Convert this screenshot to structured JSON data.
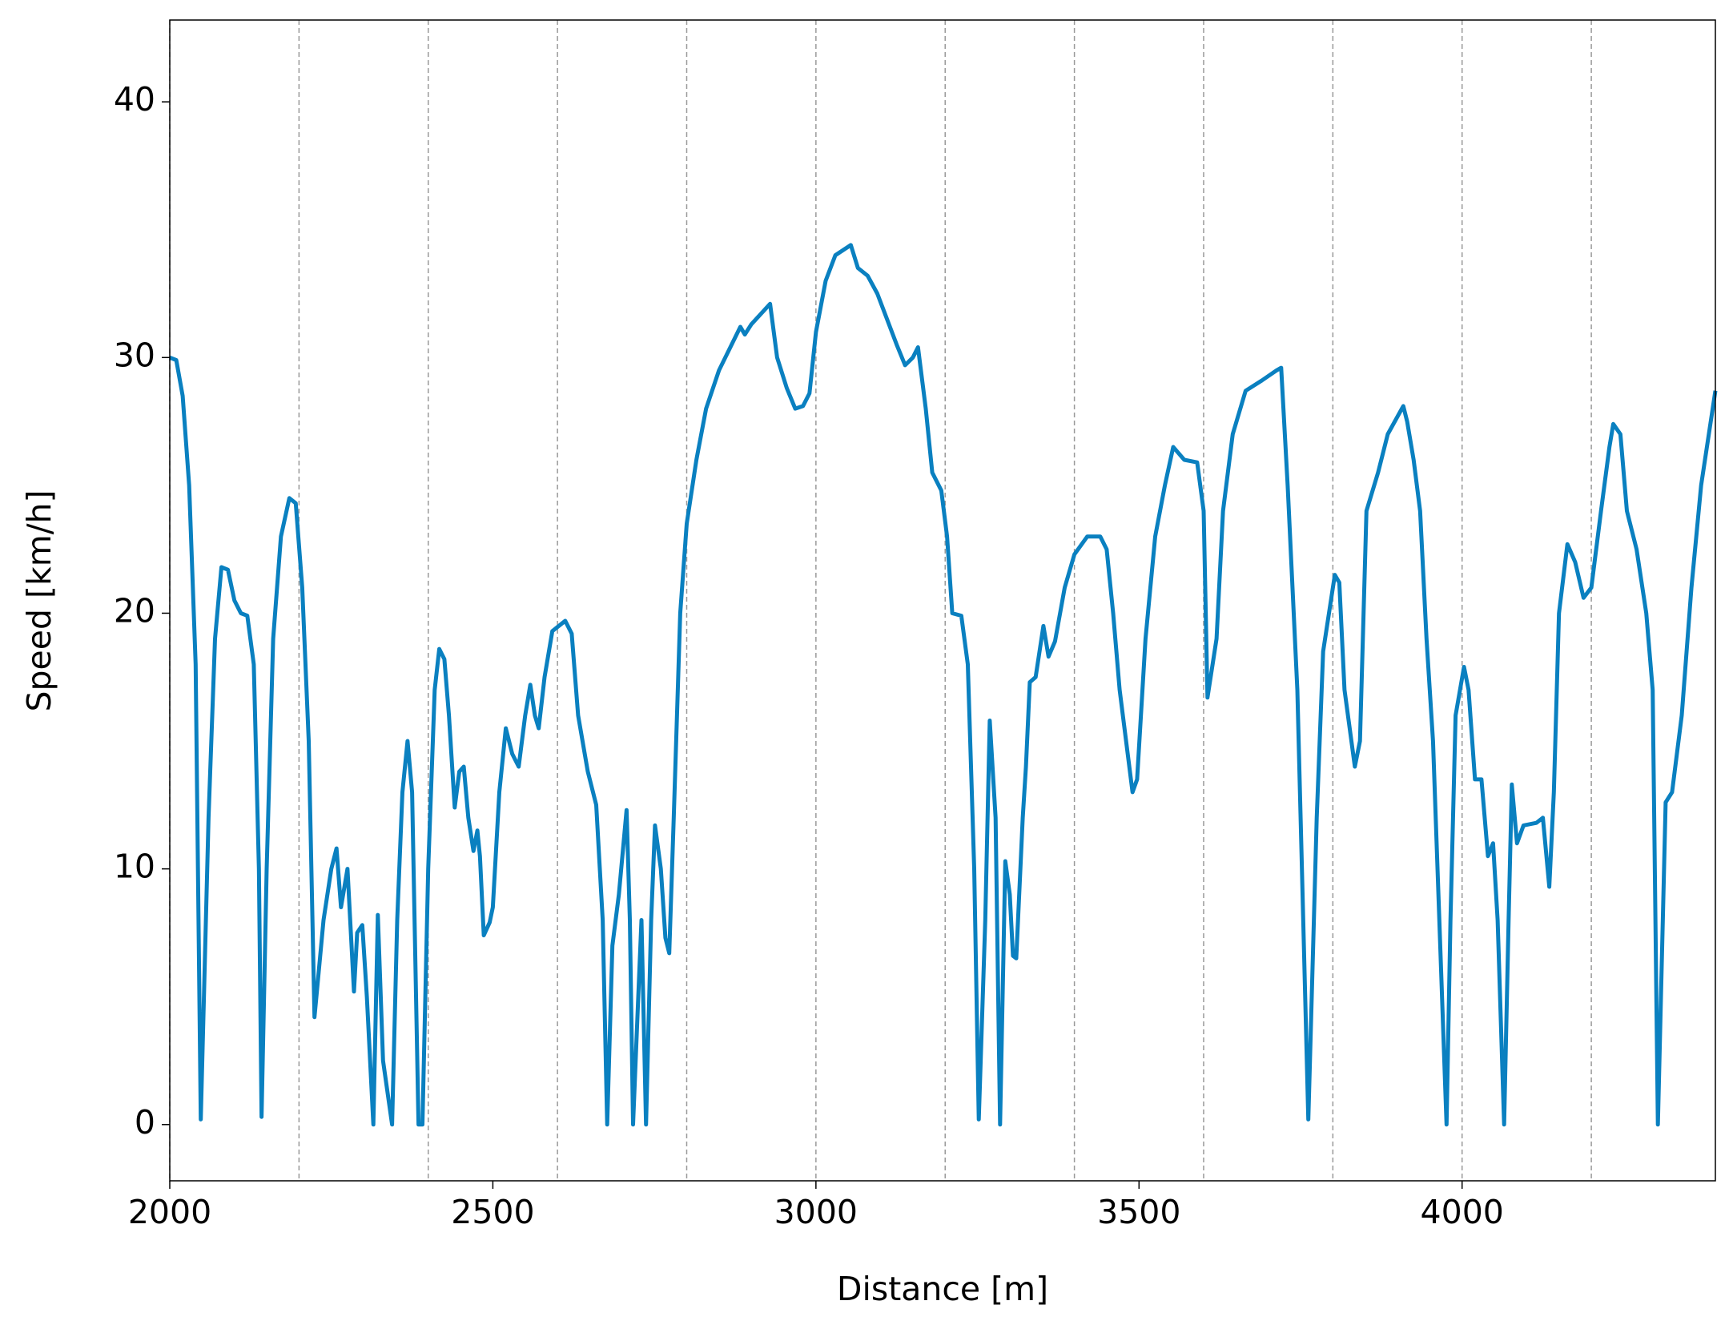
{
  "chart_data": {
    "type": "line",
    "xlabel": "Distance [m]",
    "ylabel": "Speed [km/h]",
    "xlim": [
      2000,
      4392
    ],
    "ylim": [
      -2.2,
      43.2
    ],
    "xticks": [
      2000,
      2500,
      3000,
      3500,
      4000
    ],
    "yticks": [
      0,
      10,
      20,
      30,
      40
    ],
    "vlines": [
      2000,
      2200,
      2400,
      2600,
      2800,
      3000,
      3200,
      3400,
      3600,
      3800,
      4000,
      4200
    ],
    "series": [
      {
        "color": "#0a80c0",
        "x": [
          2000,
          2010,
          2020,
          2030,
          2040,
          2048,
          2060,
          2070,
          2080,
          2090,
          2100,
          2110,
          2120,
          2130,
          2138,
          2142,
          2150,
          2160,
          2172,
          2185,
          2195,
          2205,
          2215,
          2224,
          2238,
          2250,
          2258,
          2265,
          2275,
          2285,
          2290,
          2298,
          2305,
          2315,
          2322,
          2330,
          2344,
          2352,
          2360,
          2368,
          2375,
          2385,
          2391,
          2400,
          2410,
          2417,
          2425,
          2432,
          2441,
          2448,
          2455,
          2462,
          2470,
          2476,
          2480,
          2486,
          2495,
          2500,
          2510,
          2520,
          2530,
          2540,
          2550,
          2558,
          2565,
          2571,
          2580,
          2592,
          2612,
          2622,
          2632,
          2647,
          2660,
          2670,
          2677,
          2685,
          2695,
          2707,
          2712,
          2717,
          2725,
          2730,
          2737,
          2745,
          2751,
          2760,
          2767,
          2773,
          2780,
          2790,
          2800,
          2815,
          2830,
          2850,
          2883,
          2890,
          2900,
          2929,
          2940,
          2955,
          2968,
          2980,
          2990,
          3000,
          3015,
          3030,
          3054,
          3065,
          3080,
          3095,
          3110,
          3125,
          3138,
          3150,
          3158,
          3170,
          3180,
          3194,
          3203,
          3211,
          3225,
          3235,
          3245,
          3252,
          3262,
          3269,
          3278,
          3285,
          3293,
          3300,
          3305,
          3310,
          3320,
          3325,
          3331,
          3340,
          3352,
          3360,
          3370,
          3385,
          3400,
          3420,
          3440,
          3450,
          3460,
          3470,
          3490,
          3497,
          3510,
          3525,
          3540,
          3553,
          3570,
          3590,
          3600,
          3606,
          3620,
          3630,
          3645,
          3665,
          3690,
          3713,
          3720,
          3730,
          3745,
          3762,
          3775,
          3785,
          3803,
          3810,
          3818,
          3834,
          3842,
          3852,
          3870,
          3885,
          3909,
          3915,
          3925,
          3935,
          3945,
          3955,
          3976,
          3982,
          3990,
          4003,
          4010,
          4020,
          4030,
          4040,
          4048,
          4055,
          4065,
          4072,
          4077,
          4085,
          4095,
          4115,
          4125,
          4135,
          4142,
          4150,
          4163,
          4175,
          4188,
          4200,
          4215,
          4228,
          4234,
          4245,
          4255,
          4270,
          4285,
          4295,
          4303,
          4315,
          4325,
          4340,
          4355,
          4370,
          4392
        ],
        "values": [
          30,
          29.9,
          28.5,
          25,
          18,
          0.2,
          12,
          19,
          21.8,
          21.7,
          20.5,
          20,
          19.9,
          18,
          10,
          0.3,
          10,
          19,
          23,
          24.5,
          24.3,
          21,
          15,
          4.2,
          8,
          10,
          10.8,
          8.5,
          10,
          5.2,
          7.5,
          7.8,
          5,
          0,
          8.2,
          2.5,
          0,
          8,
          13,
          15,
          13,
          0,
          0,
          10,
          17,
          18.6,
          18.2,
          16,
          12.4,
          13.8,
          14,
          12,
          10.7,
          11.5,
          10.5,
          7.4,
          7.9,
          8.5,
          13,
          15.5,
          14.5,
          14,
          16,
          17.2,
          16,
          15.5,
          17.5,
          19.3,
          19.7,
          19.2,
          16,
          13.8,
          12.5,
          8,
          0,
          7,
          9,
          12.3,
          8,
          0,
          5,
          8,
          0,
          8,
          11.7,
          10,
          7.3,
          6.7,
          12,
          20,
          23.5,
          26,
          28,
          29.5,
          31.2,
          30.9,
          31.3,
          32.1,
          30,
          28.8,
          28,
          28.1,
          28.6,
          31,
          33,
          34,
          34.4,
          33.5,
          33.2,
          32.5,
          31.5,
          30.5,
          29.7,
          30,
          30.4,
          28,
          25.5,
          24.8,
          23,
          20,
          19.9,
          18,
          10,
          0.2,
          8,
          15.8,
          12,
          0,
          10.3,
          9,
          6.6,
          6.5,
          12,
          14,
          17.3,
          17.5,
          19.5,
          18.3,
          18.9,
          21,
          22.3,
          23,
          23,
          22.5,
          20,
          17,
          13,
          13.5,
          19,
          23,
          25,
          26.5,
          26,
          25.9,
          24,
          16.7,
          19,
          24,
          27,
          28.7,
          29.1,
          29.5,
          29.6,
          25,
          17,
          0.2,
          12,
          18.5,
          21.5,
          21.2,
          17,
          14,
          15,
          24,
          25.5,
          27,
          28.1,
          27.5,
          26,
          24,
          19,
          15,
          0,
          8,
          16,
          17.9,
          17,
          13.5,
          13.5,
          10.5,
          11,
          8,
          0,
          8,
          13.3,
          11,
          11.7,
          11.8,
          12,
          9.3,
          13,
          20,
          22.7,
          22,
          20.6,
          21,
          24,
          26.5,
          27.4,
          27,
          24,
          22.5,
          20,
          17,
          0,
          12.6,
          13,
          16,
          21,
          25,
          28.7
        ]
      }
    ]
  }
}
